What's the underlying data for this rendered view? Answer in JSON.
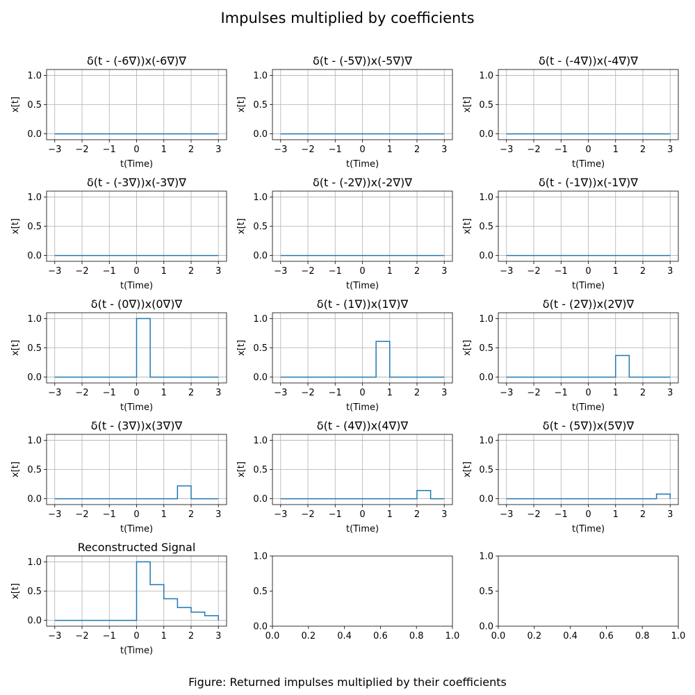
{
  "figure": {
    "title": "Impulses multiplied by coefficients",
    "caption": "Figure: Returned impulses multiplied by their coefficients"
  },
  "series_color": "#1f77b4",
  "grid_color": "#b0b0b0",
  "chart_data": [
    {
      "type": "line",
      "title": "δ(t - (-6∇))x(-6∇)∇",
      "xlabel": "t(Time)",
      "ylabel": "x[t]",
      "xlim": [
        -3.3,
        3.3
      ],
      "ylim": [
        -0.1,
        1.1
      ],
      "xticks": [
        -3,
        -2,
        -1,
        0,
        1,
        2,
        3
      ],
      "yticks": [
        0.0,
        0.5,
        1.0
      ],
      "grid": true,
      "x": [
        -3,
        3
      ],
      "y": [
        0,
        0
      ]
    },
    {
      "type": "line",
      "title": "δ(t - (-5∇))x(-5∇)∇",
      "xlabel": "t(Time)",
      "ylabel": "x[t]",
      "xlim": [
        -3.3,
        3.3
      ],
      "ylim": [
        -0.1,
        1.1
      ],
      "xticks": [
        -3,
        -2,
        -1,
        0,
        1,
        2,
        3
      ],
      "yticks": [
        0.0,
        0.5,
        1.0
      ],
      "grid": true,
      "x": [
        -3,
        3
      ],
      "y": [
        0,
        0
      ]
    },
    {
      "type": "line",
      "title": "δ(t - (-4∇))x(-4∇)∇",
      "xlabel": "t(Time)",
      "ylabel": "x[t]",
      "xlim": [
        -3.3,
        3.3
      ],
      "ylim": [
        -0.1,
        1.1
      ],
      "xticks": [
        -3,
        -2,
        -1,
        0,
        1,
        2,
        3
      ],
      "yticks": [
        0.0,
        0.5,
        1.0
      ],
      "grid": true,
      "x": [
        -3,
        3
      ],
      "y": [
        0,
        0
      ]
    },
    {
      "type": "line",
      "title": "δ(t - (-3∇))x(-3∇)∇",
      "xlabel": "t(Time)",
      "ylabel": "x[t]",
      "xlim": [
        -3.3,
        3.3
      ],
      "ylim": [
        -0.1,
        1.1
      ],
      "xticks": [
        -3,
        -2,
        -1,
        0,
        1,
        2,
        3
      ],
      "yticks": [
        0.0,
        0.5,
        1.0
      ],
      "grid": true,
      "x": [
        -3,
        3
      ],
      "y": [
        0,
        0
      ]
    },
    {
      "type": "line",
      "title": "δ(t - (-2∇))x(-2∇)∇",
      "xlabel": "t(Time)",
      "ylabel": "x[t]",
      "xlim": [
        -3.3,
        3.3
      ],
      "ylim": [
        -0.1,
        1.1
      ],
      "xticks": [
        -3,
        -2,
        -1,
        0,
        1,
        2,
        3
      ],
      "yticks": [
        0.0,
        0.5,
        1.0
      ],
      "grid": true,
      "x": [
        -3,
        3
      ],
      "y": [
        0,
        0
      ]
    },
    {
      "type": "line",
      "title": "δ(t - (-1∇))x(-1∇)∇",
      "xlabel": "t(Time)",
      "ylabel": "x[t]",
      "xlim": [
        -3.3,
        3.3
      ],
      "ylim": [
        -0.1,
        1.1
      ],
      "xticks": [
        -3,
        -2,
        -1,
        0,
        1,
        2,
        3
      ],
      "yticks": [
        0.0,
        0.5,
        1.0
      ],
      "grid": true,
      "x": [
        -3,
        3
      ],
      "y": [
        0,
        0
      ]
    },
    {
      "type": "line",
      "title": "δ(t - (0∇))x(0∇)∇",
      "xlabel": "t(Time)",
      "ylabel": "x[t]",
      "xlim": [
        -3.3,
        3.3
      ],
      "ylim": [
        -0.1,
        1.1
      ],
      "xticks": [
        -3,
        -2,
        -1,
        0,
        1,
        2,
        3
      ],
      "yticks": [
        0.0,
        0.5,
        1.0
      ],
      "grid": true,
      "x": [
        -3,
        0,
        0,
        0.5,
        0.5,
        3
      ],
      "y": [
        0,
        0,
        1.0,
        1.0,
        0,
        0
      ]
    },
    {
      "type": "line",
      "title": "δ(t - (1∇))x(1∇)∇",
      "xlabel": "t(Time)",
      "ylabel": "x[t]",
      "xlim": [
        -3.3,
        3.3
      ],
      "ylim": [
        -0.1,
        1.1
      ],
      "xticks": [
        -3,
        -2,
        -1,
        0,
        1,
        2,
        3
      ],
      "yticks": [
        0.0,
        0.5,
        1.0
      ],
      "grid": true,
      "x": [
        -3,
        0.5,
        0.5,
        1.0,
        1.0,
        3
      ],
      "y": [
        0,
        0,
        0.61,
        0.61,
        0,
        0
      ]
    },
    {
      "type": "line",
      "title": "δ(t - (2∇))x(2∇)∇",
      "xlabel": "t(Time)",
      "ylabel": "x[t]",
      "xlim": [
        -3.3,
        3.3
      ],
      "ylim": [
        -0.1,
        1.1
      ],
      "xticks": [
        -3,
        -2,
        -1,
        0,
        1,
        2,
        3
      ],
      "yticks": [
        0.0,
        0.5,
        1.0
      ],
      "grid": true,
      "x": [
        -3,
        1.0,
        1.0,
        1.5,
        1.5,
        3
      ],
      "y": [
        0,
        0,
        0.37,
        0.37,
        0,
        0
      ]
    },
    {
      "type": "line",
      "title": "δ(t - (3∇))x(3∇)∇",
      "xlabel": "t(Time)",
      "ylabel": "x[t]",
      "xlim": [
        -3.3,
        3.3
      ],
      "ylim": [
        -0.1,
        1.1
      ],
      "xticks": [
        -3,
        -2,
        -1,
        0,
        1,
        2,
        3
      ],
      "yticks": [
        0.0,
        0.5,
        1.0
      ],
      "grid": true,
      "x": [
        -3,
        1.5,
        1.5,
        2.0,
        2.0,
        3
      ],
      "y": [
        0,
        0,
        0.22,
        0.22,
        0,
        0
      ]
    },
    {
      "type": "line",
      "title": "δ(t - (4∇))x(4∇)∇",
      "xlabel": "t(Time)",
      "ylabel": "x[t]",
      "xlim": [
        -3.3,
        3.3
      ],
      "ylim": [
        -0.1,
        1.1
      ],
      "xticks": [
        -3,
        -2,
        -1,
        0,
        1,
        2,
        3
      ],
      "yticks": [
        0.0,
        0.5,
        1.0
      ],
      "grid": true,
      "x": [
        -3,
        2.0,
        2.0,
        2.5,
        2.5,
        3
      ],
      "y": [
        0,
        0,
        0.14,
        0.14,
        0,
        0
      ]
    },
    {
      "type": "line",
      "title": "δ(t - (5∇))x(5∇)∇",
      "xlabel": "t(Time)",
      "ylabel": "x[t]",
      "xlim": [
        -3.3,
        3.3
      ],
      "ylim": [
        -0.1,
        1.1
      ],
      "xticks": [
        -3,
        -2,
        -1,
        0,
        1,
        2,
        3
      ],
      "yticks": [
        0.0,
        0.5,
        1.0
      ],
      "grid": true,
      "x": [
        -3,
        2.5,
        2.5,
        3.0,
        3.0
      ],
      "y": [
        0,
        0,
        0.08,
        0.08,
        0
      ]
    },
    {
      "type": "line",
      "title": "Reconstructed Signal",
      "xlabel": "t(Time)",
      "ylabel": "x[t]",
      "xlim": [
        -3.3,
        3.3
      ],
      "ylim": [
        -0.1,
        1.1
      ],
      "xticks": [
        -3,
        -2,
        -1,
        0,
        1,
        2,
        3
      ],
      "yticks": [
        0.0,
        0.5,
        1.0
      ],
      "grid": true,
      "x": [
        -3,
        0,
        0,
        0.5,
        0.5,
        1.0,
        1.0,
        1.5,
        1.5,
        2.0,
        2.0,
        2.5,
        2.5,
        3.0,
        3.0
      ],
      "y": [
        0,
        0,
        1.0,
        1.0,
        0.61,
        0.61,
        0.37,
        0.37,
        0.22,
        0.22,
        0.14,
        0.14,
        0.08,
        0.08,
        0
      ]
    },
    {
      "type": "line",
      "title": "",
      "xlabel": "",
      "ylabel": "",
      "xlim": [
        0,
        1
      ],
      "ylim": [
        0,
        1
      ],
      "xticks": [
        0.0,
        0.2,
        0.4,
        0.6,
        0.8,
        1.0
      ],
      "yticks": [
        0.0,
        0.5,
        1.0
      ],
      "grid": false,
      "x": [],
      "y": []
    },
    {
      "type": "line",
      "title": "",
      "xlabel": "",
      "ylabel": "",
      "xlim": [
        0,
        1
      ],
      "ylim": [
        0,
        1
      ],
      "xticks": [
        0.0,
        0.2,
        0.4,
        0.6,
        0.8,
        1.0
      ],
      "yticks": [
        0.0,
        0.5,
        1.0
      ],
      "grid": false,
      "x": [],
      "y": []
    }
  ]
}
